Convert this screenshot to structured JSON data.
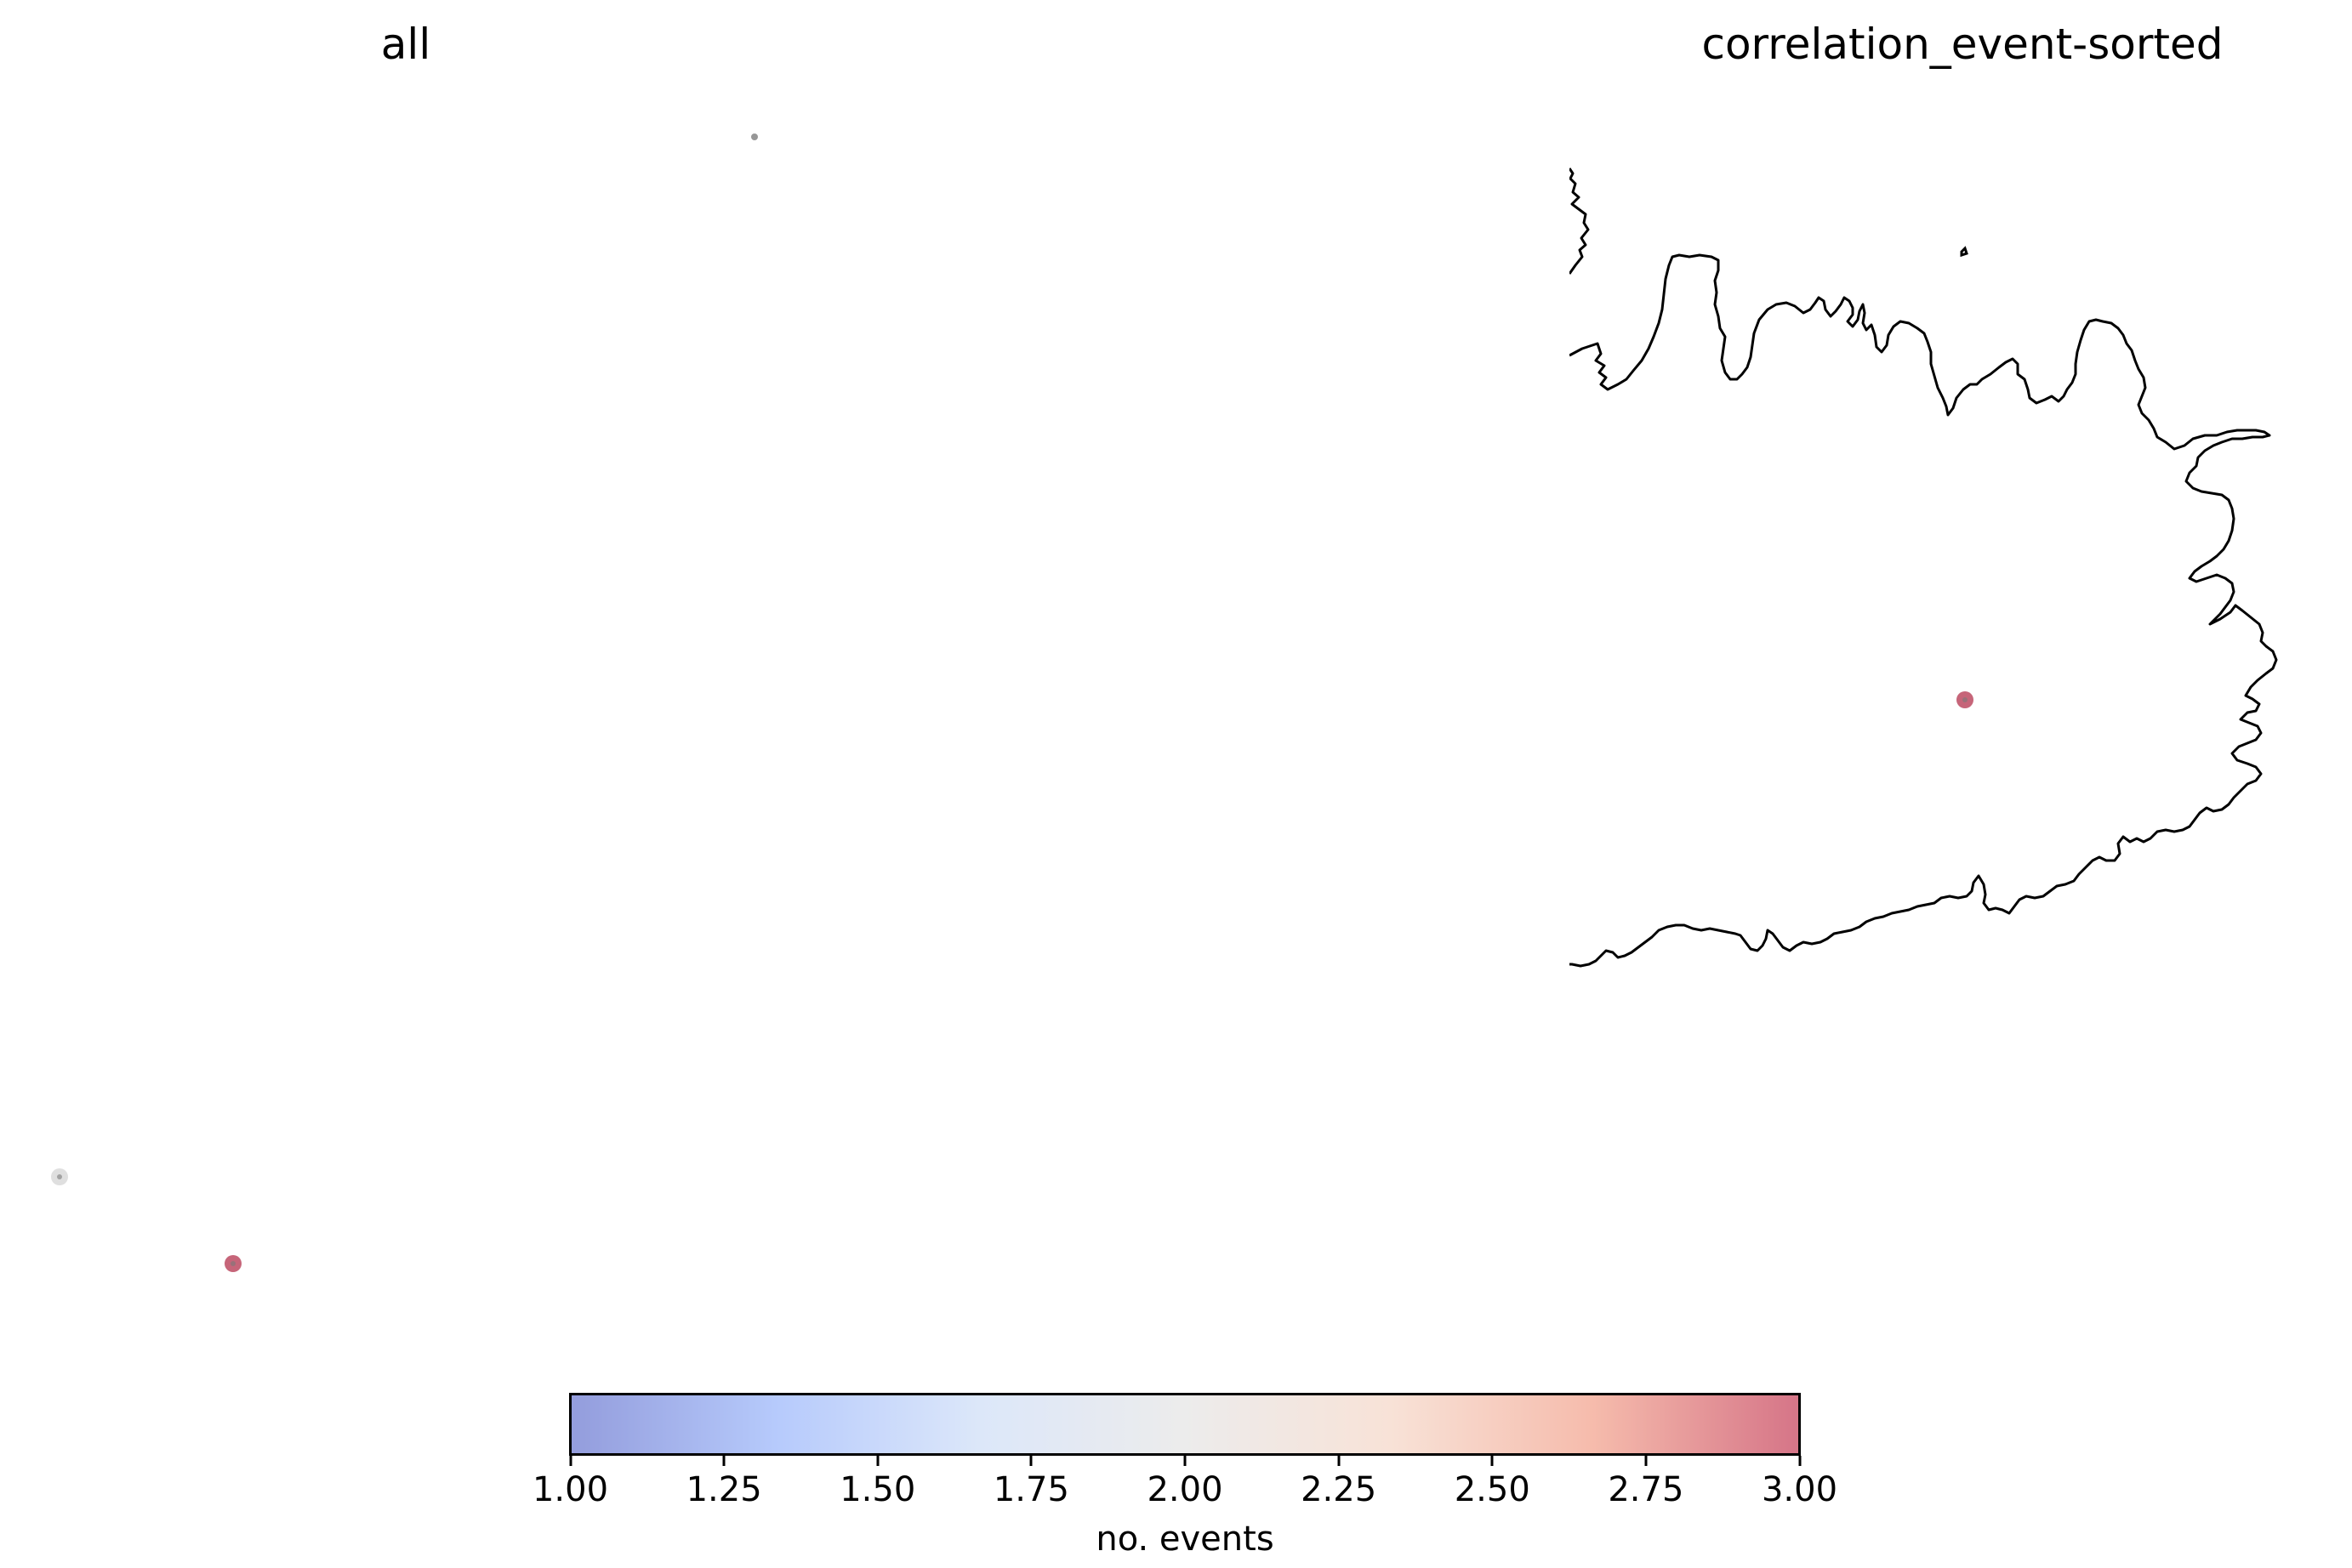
{
  "panels": [
    {
      "title": "all",
      "points": [
        {
          "value": 3,
          "color": "#c0546a"
        },
        {
          "value": 2,
          "color": "#dcdcdc"
        },
        {
          "value": null,
          "color": "#8c8c8c"
        }
      ]
    },
    {
      "title": "correlation_event-sorted",
      "points": [
        {
          "value": 3,
          "color": "#c0546a"
        }
      ]
    }
  ],
  "colorbar": {
    "label": "no. events",
    "vmin": 1.0,
    "vmax": 3.0,
    "colormap": "coolwarm",
    "alpha": 0.55,
    "colors": [
      "#3b4cc0",
      "#7b9ff9",
      "#c0d4f5",
      "#dddcdc",
      "#f2cbb7",
      "#ee8468",
      "#b40426"
    ],
    "ticks": [
      {
        "value": 1.0,
        "label": "1.00"
      },
      {
        "value": 1.25,
        "label": "1.25"
      },
      {
        "value": 1.5,
        "label": "1.50"
      },
      {
        "value": 1.75,
        "label": "1.75"
      },
      {
        "value": 2.0,
        "label": "2.00"
      },
      {
        "value": 2.25,
        "label": "2.25"
      },
      {
        "value": 2.5,
        "label": "2.50"
      },
      {
        "value": 2.75,
        "label": "2.75"
      },
      {
        "value": 3.0,
        "label": "3.00"
      }
    ]
  },
  "colors": {
    "coastline": "#000000",
    "background": "#ffffff"
  }
}
